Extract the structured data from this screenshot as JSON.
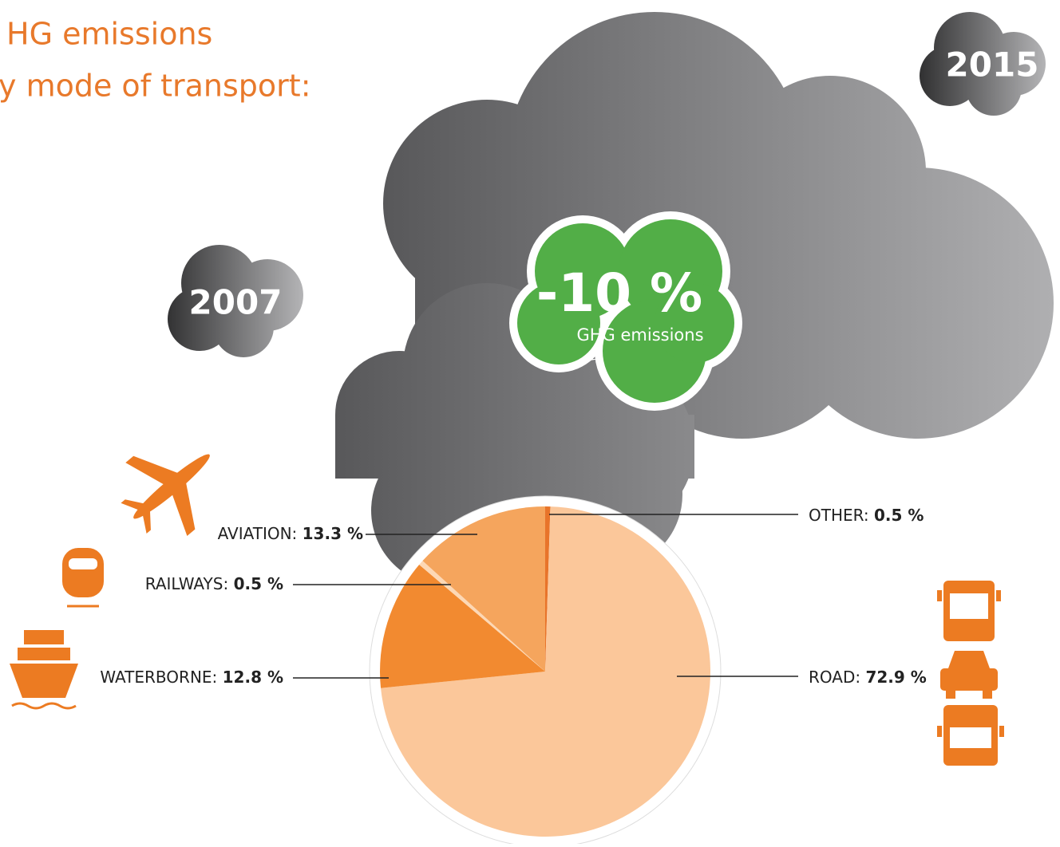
{
  "chart_data": {
    "type": "pie",
    "title": [
      "HG emissions",
      "y mode of transport:"
    ],
    "badges": {
      "later_year": "2015",
      "earlier_year": "2007",
      "change": "-10 %",
      "change_caption": "GHG emissions"
    },
    "categories": [
      "OTHER:",
      "ROAD:",
      "WATERBORNE:",
      "RAILWAYS:",
      "AVIATION:"
    ],
    "values": [
      0.5,
      72.9,
      12.8,
      0.5,
      13.3
    ],
    "value_labels": [
      "0.5 %",
      "72.9 %",
      "12.8 %",
      "0.5 %",
      "13.3 %"
    ],
    "colors": [
      "#e8742a",
      "#fbc79a",
      "#f28a30",
      "#fdd8b5",
      "#f5a55d"
    ]
  }
}
